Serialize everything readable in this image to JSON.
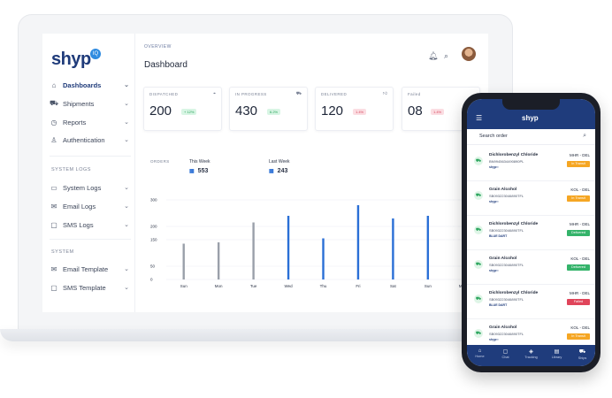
{
  "sidebar": {
    "logo": "shyp",
    "logo_badge": "IQ",
    "nav": [
      {
        "label": "Dashboards",
        "icon": "home-icon",
        "glyph": "⌂",
        "active": true
      },
      {
        "label": "Shipments",
        "icon": "truck-icon",
        "glyph": "⛟",
        "active": false
      },
      {
        "label": "Reports",
        "icon": "clock-icon",
        "glyph": "◷",
        "active": false
      },
      {
        "label": "Authentication",
        "icon": "user-icon",
        "glyph": "♙",
        "active": false
      }
    ],
    "system_logs_label": "SYSTEM LOGS",
    "logs": [
      {
        "label": "System Logs",
        "icon": "monitor-icon",
        "glyph": "▭"
      },
      {
        "label": "Email Logs",
        "icon": "mail-icon",
        "glyph": "✉"
      },
      {
        "label": "SMS Logs",
        "icon": "chat-icon",
        "glyph": "▢"
      }
    ],
    "system_label": "SYSTEM",
    "system": [
      {
        "label": "Email Template",
        "icon": "mail-icon",
        "glyph": "✉"
      },
      {
        "label": "SMS Template",
        "icon": "chat-icon",
        "glyph": "▢"
      }
    ]
  },
  "main": {
    "breadcrumb": "OVERVIEW",
    "title": "Dashboard",
    "cards": [
      {
        "label": "DISPATCHED",
        "value": "200",
        "badge": "+ 12%",
        "trend": "up"
      },
      {
        "label": "IN PROGRESS",
        "value": "430",
        "badge": "6.2%",
        "trend": "up"
      },
      {
        "label": "DELIVERED",
        "value": "120",
        "badge": "1.4%",
        "trend": "down"
      },
      {
        "label": "Failed",
        "value": "08",
        "badge": "1.4%",
        "trend": "down"
      }
    ],
    "orders_label": "ORDERS",
    "this_week_label": "This Week",
    "this_week_value": "553",
    "last_week_label": "Last Week",
    "last_week_value": "243"
  },
  "chart_data": {
    "type": "bar",
    "categories": [
      "Sun",
      "Mon",
      "Tue",
      "Wed",
      "Thu",
      "Fri",
      "Sat",
      "Sun",
      "Mon"
    ],
    "yticks": [
      "0",
      "50",
      "150",
      "200",
      "300"
    ],
    "ylim": [
      0,
      300
    ],
    "series": [
      {
        "values": [
          135,
          140,
          215,
          null,
          null,
          null,
          null,
          null,
          null
        ],
        "color": "#9aa0aa"
      },
      {
        "values": [
          null,
          null,
          null,
          240,
          155,
          280,
          230,
          240,
          230
        ],
        "color": "#2a6fd6"
      }
    ]
  },
  "phone": {
    "logo": "shyp",
    "search_placeholder": "Search order",
    "orders": [
      {
        "name": "Dichlorobenzyl Chloride",
        "id": "BN9945634490890PL",
        "carrier": "shyp▪▪",
        "route": "MHR - DEL",
        "status": "In Transit",
        "status_class": "transit"
      },
      {
        "name": "Grain Alcohol",
        "id": "SB093223046890TFL",
        "carrier": "shyp▪▪",
        "route": "KOL - DEL",
        "status": "In Transit",
        "status_class": "transit"
      },
      {
        "name": "Dichlorobenzyl Chloride",
        "id": "SB093223046890TFL",
        "carrier": "BLUE DART",
        "route": "MHR - DEL",
        "status": "Delivered",
        "status_class": "delivered"
      },
      {
        "name": "Grain Alcohol",
        "id": "SB093223046890TFL",
        "carrier": "shyp▪▪",
        "route": "KOL - DEL",
        "status": "Delivered",
        "status_class": "delivered"
      },
      {
        "name": "Dichlorobenzyl Chloride",
        "id": "SB093223046890TFL",
        "carrier": "BLUE DART",
        "route": "MHR - DEL",
        "status": "Failed",
        "status_class": "failed"
      },
      {
        "name": "Grain Alcohol",
        "id": "SB093223046890TFL",
        "carrier": "shyp▪▪",
        "route": "KOL - DEL",
        "status": "In Transit",
        "status_class": "transit"
      }
    ],
    "tabs": [
      {
        "label": "Home",
        "icon": "home-icon",
        "glyph": "⌂"
      },
      {
        "label": "Chat",
        "icon": "chat-icon",
        "glyph": "▢"
      },
      {
        "label": "Tracking",
        "icon": "map-icon",
        "glyph": "◈"
      },
      {
        "label": "Library",
        "icon": "book-icon",
        "glyph": "▤"
      },
      {
        "label": "Ships",
        "icon": "truck-icon",
        "glyph": "⛟"
      }
    ]
  }
}
